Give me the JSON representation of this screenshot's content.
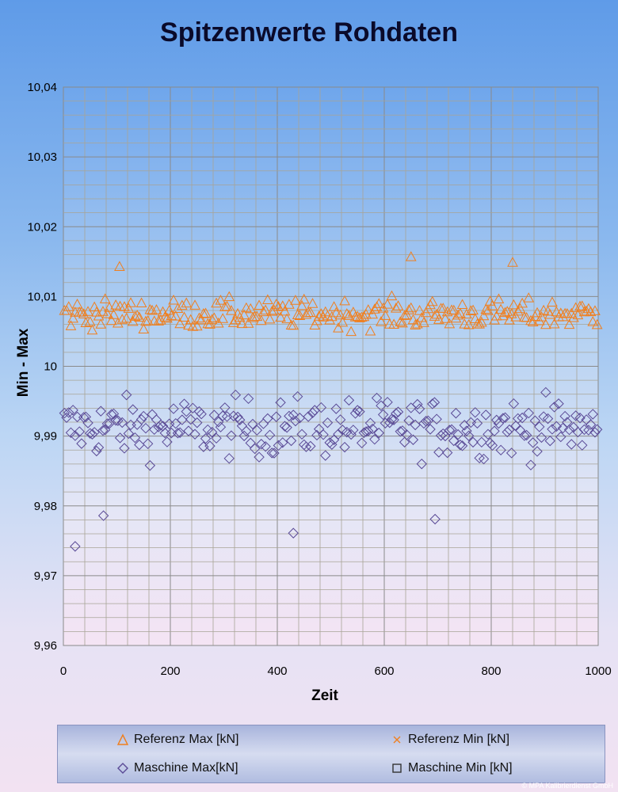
{
  "chart_data": {
    "type": "scatter",
    "title": "Spitzenwerte Rohdaten",
    "xlabel": "Zeit",
    "ylabel": "Min - Max",
    "xlim": [
      0,
      1000
    ],
    "ylim": [
      9.96,
      10.04
    ],
    "x_ticks": [
      "0",
      "200",
      "400",
      "600",
      "800",
      "1000"
    ],
    "y_ticks": [
      "9,96",
      "9,97",
      "9,98",
      "9,99",
      "10",
      "10,01",
      "10,02",
      "10,03",
      "10,04"
    ],
    "grid": true,
    "legend_position": "bottom",
    "point_spacing": 4,
    "series": [
      {
        "name": "Referenz Max [kN]",
        "marker": "triangle",
        "color": "#f07f1e",
        "mean": 10.0075,
        "spread": 0.0022,
        "min": 10.0,
        "max": 10.0158,
        "note_points": [
          [
            105,
            10.0143
          ],
          [
            650,
            10.0157
          ],
          [
            840,
            10.0149
          ]
        ]
      },
      {
        "name": "Referenz Min [kN]",
        "marker": "x",
        "color": "#f07f1e"
      },
      {
        "name": "Maschine Max[kN]",
        "marker": "diamond",
        "color": "#5a4a96",
        "mean": 9.9912,
        "spread": 0.0045,
        "min": 9.9742,
        "max": 10.0022,
        "note_points": [
          [
            22,
            9.9742
          ],
          [
            430,
            9.9761
          ],
          [
            695,
            9.9781
          ],
          [
            75,
            9.9786
          ]
        ]
      },
      {
        "name": "Maschine Min [kN]",
        "marker": "square",
        "color": "#5a4a96"
      }
    ]
  },
  "watermark": "© MPA Kalibrierdienst GmbH"
}
